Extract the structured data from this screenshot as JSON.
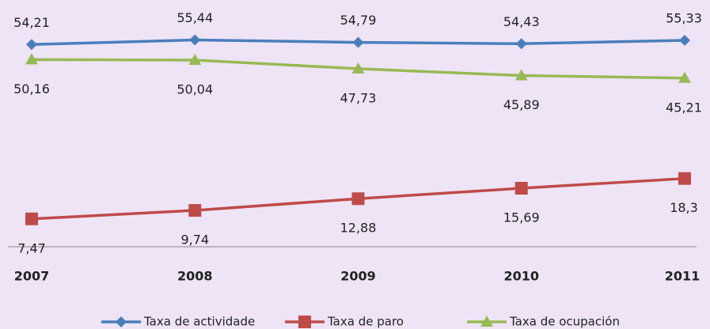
{
  "chart_data": {
    "type": "line",
    "categories": [
      "2007",
      "2008",
      "2009",
      "2010",
      "2011"
    ],
    "series": [
      {
        "name": "Taxa de actividade",
        "color": "#4a7ebb",
        "marker": "diamond",
        "values": [
          54.21,
          55.44,
          54.79,
          54.43,
          55.33
        ],
        "value_labels": [
          "54,21",
          "55,44",
          "54,79",
          "54,43",
          "55,33"
        ],
        "label_position": "above"
      },
      {
        "name": "Taxa de paro",
        "color": "#be4b48",
        "marker": "square",
        "values": [
          7.47,
          9.74,
          12.88,
          15.69,
          18.3
        ],
        "value_labels": [
          "7,47",
          "9,74",
          "12,88",
          "15,69",
          "18,3"
        ],
        "label_position": "below"
      },
      {
        "name": "Taxa de ocupación",
        "color": "#98b954",
        "marker": "triangle",
        "values": [
          50.16,
          50.04,
          47.73,
          45.89,
          45.21
        ],
        "value_labels": [
          "50,16",
          "50,04",
          "47,73",
          "45,89",
          "45,21"
        ],
        "label_position": "below"
      }
    ],
    "ylim": [
      0,
      60
    ],
    "legend": "bottom"
  }
}
